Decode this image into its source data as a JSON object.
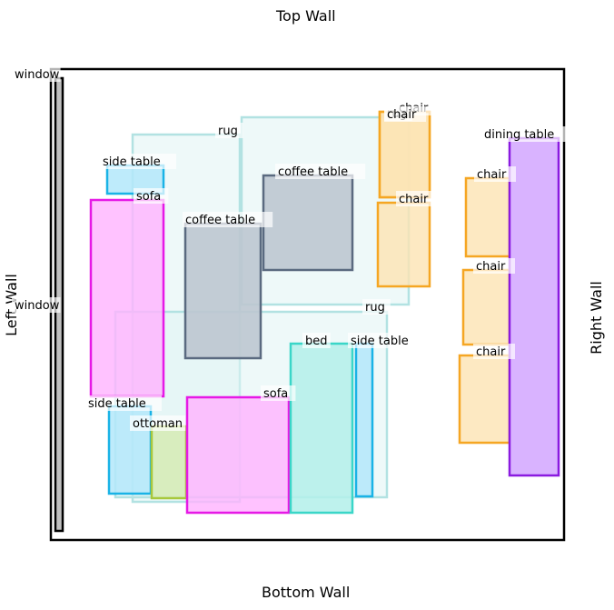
{
  "walls": {
    "top": "Top Wall",
    "bottom": "Bottom Wall",
    "left": "Left Wall",
    "right": "Right Wall"
  },
  "colors": {
    "rug_stroke": "#b2e2e2",
    "rug_fill": "#e0f4f4",
    "side_table_stroke": "#1ab3e6",
    "side_table_fill": "#b3e8fa",
    "sofa_stroke": "#e619e6",
    "sofa_fill": "#ffb3ff",
    "coffee_table_stroke": "#5a6a80",
    "coffee_table_fill": "#bcc7d0",
    "chair_stroke": "#f5a623",
    "chair_fill": "#fde3b3",
    "dining_table_stroke": "#8a1ae0",
    "dining_table_fill": "#d9b3ff",
    "ottoman_stroke": "#a8c83c",
    "ottoman_fill": "#d6ecb8",
    "bed_stroke": "#3ad6c8",
    "bed_fill": "#b3f0ea",
    "window_stroke": "#000000",
    "window_fill": "#c0c0c0"
  },
  "items": [
    {
      "type": "window",
      "label": "window"
    },
    {
      "type": "window",
      "label": "window"
    },
    {
      "type": "rug",
      "label": "rug"
    },
    {
      "type": "rug",
      "label": "rug"
    },
    {
      "type": "rug",
      "label": "rug"
    },
    {
      "type": "side_table",
      "label": "side table"
    },
    {
      "type": "sofa",
      "label": "sofa"
    },
    {
      "type": "coffee_table",
      "label": "coffee table"
    },
    {
      "type": "coffee_table",
      "label": "coffee table"
    },
    {
      "type": "chair",
      "label": "chair"
    },
    {
      "type": "chair",
      "label": "chair"
    },
    {
      "type": "chair",
      "label": "chair"
    },
    {
      "type": "chair",
      "label": "chair"
    },
    {
      "type": "chair",
      "label": "chair"
    },
    {
      "type": "dining_table",
      "label": "dining table"
    },
    {
      "type": "side_table",
      "label": "side table"
    },
    {
      "type": "ottoman",
      "label": "ottoman"
    },
    {
      "type": "sofa",
      "label": "sofa"
    },
    {
      "type": "bed",
      "label": "bed"
    },
    {
      "type": "side_table",
      "label": "side table"
    },
    {
      "type": "chair",
      "label": "chair"
    }
  ]
}
